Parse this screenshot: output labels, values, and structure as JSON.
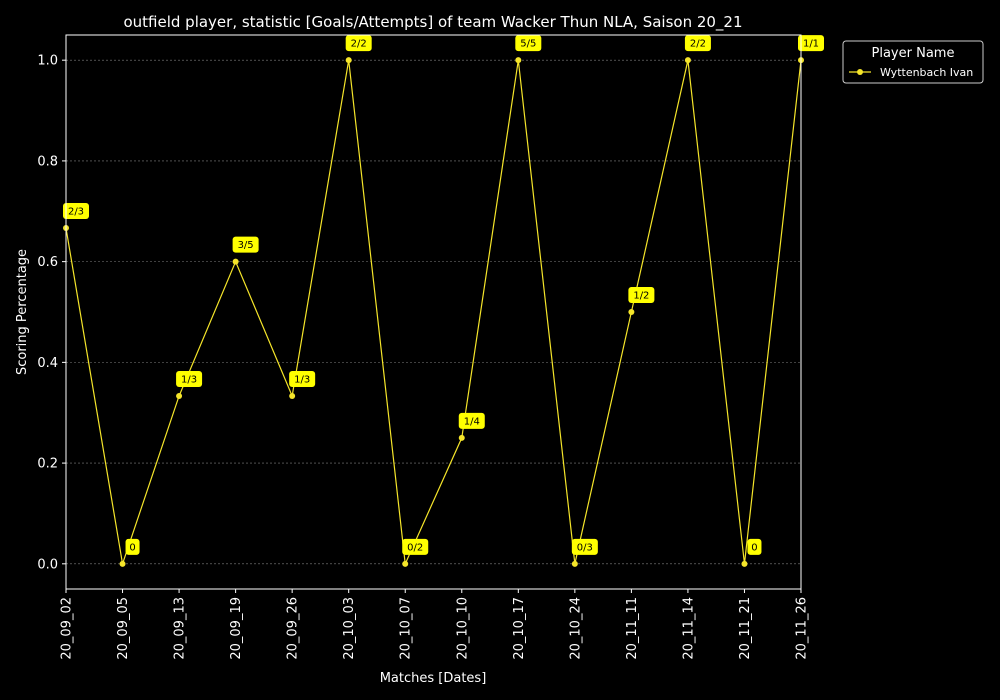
{
  "chart_data": {
    "type": "line",
    "title": "outfield player, statistic [Goals/Attempts] of team Wacker Thun NLA, Saison 20_21",
    "xlabel": "Matches [Dates]",
    "ylabel": "Scoring Percentage",
    "categories": [
      "20_09_02",
      "20_09_05",
      "20_09_13",
      "20_09_19",
      "20_09_26",
      "20_10_03",
      "20_10_07",
      "20_10_10",
      "20_10_17",
      "20_10_24",
      "20_11_11",
      "20_11_14",
      "20_11_21",
      "20_11_26"
    ],
    "ylim": [
      -0.05,
      1.05
    ],
    "yticks": [
      0.0,
      0.2,
      0.4,
      0.6,
      0.8,
      1.0
    ],
    "ytick_labels": [
      "0.0",
      "0.2",
      "0.4",
      "0.6",
      "0.8",
      "1.0"
    ],
    "grid": true,
    "legend": {
      "title": "Player Name",
      "placement": "outside-top-right"
    },
    "series": [
      {
        "name": "Wyttenbach Ivan",
        "color": "#f5e52a",
        "values": [
          0.6667,
          0.0,
          0.3333,
          0.6,
          0.3333,
          1.0,
          0.0,
          0.25,
          1.0,
          0.0,
          0.5,
          1.0,
          0.0,
          1.0
        ],
        "labels": [
          "2/3",
          "0",
          "1/3",
          "3/5",
          "1/3",
          "2/2",
          "0/2",
          "1/4",
          "5/5",
          "0/3",
          "1/2",
          "2/2",
          "0",
          "1/1"
        ]
      }
    ],
    "colors": {
      "background": "#000000",
      "axes": "#ffffff",
      "grid": "#808080",
      "label_box": "#ffff00"
    }
  }
}
